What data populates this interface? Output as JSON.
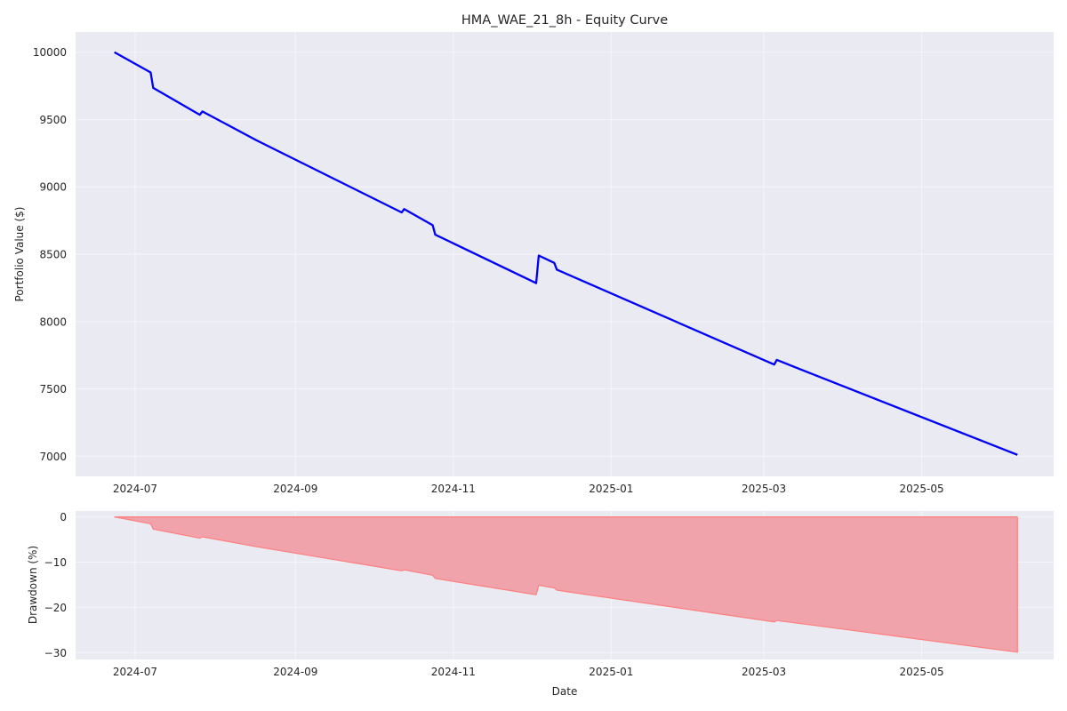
{
  "chart_data": [
    {
      "type": "line",
      "title": "HMA_WAE_21_8h - Equity Curve",
      "xlabel": "",
      "ylabel": "Portfolio Value ($)",
      "xlim": [
        "2024-06-08",
        "2025-06-21"
      ],
      "ylim": [
        6850,
        10150
      ],
      "x_ticks": [
        "2024-07",
        "2024-09",
        "2024-11",
        "2025-01",
        "2025-03",
        "2025-05"
      ],
      "y_ticks": [
        7000,
        7500,
        8000,
        8500,
        9000,
        9500,
        10000
      ],
      "grid": true,
      "color": "#0000ff",
      "series": [
        {
          "x": [
            "2024-06-23",
            "2024-07-07",
            "2024-07-08",
            "2024-07-26",
            "2024-07-27",
            "2024-08-17",
            "2024-10-12",
            "2024-10-13",
            "2024-10-24",
            "2024-10-25",
            "2024-12-03",
            "2024-12-04",
            "2024-12-10",
            "2024-12-11",
            "2025-03-05",
            "2025-03-06",
            "2025-03-21",
            "2025-06-07"
          ],
          "y": [
            10000,
            9850,
            9735,
            9535,
            9560,
            9345,
            8810,
            8835,
            8715,
            8645,
            8285,
            8490,
            8435,
            8385,
            7680,
            7715,
            7600,
            7010
          ]
        }
      ]
    },
    {
      "type": "area",
      "title": "",
      "xlabel": "Date",
      "ylabel": "Drawdown (%)",
      "xlim": [
        "2024-06-08",
        "2025-06-21"
      ],
      "ylim": [
        -31.5,
        1.3
      ],
      "x_ticks": [
        "2024-07",
        "2024-09",
        "2024-11",
        "2025-01",
        "2025-03",
        "2025-05"
      ],
      "y_ticks": [
        0,
        -10,
        -20,
        -30
      ],
      "grid": true,
      "line_color": "#ff7f7f",
      "fill_color": "#f0a3aa",
      "series": [
        {
          "x": [
            "2024-06-23",
            "2024-07-07",
            "2024-07-08",
            "2024-07-26",
            "2024-07-27",
            "2024-08-17",
            "2024-10-12",
            "2024-10-13",
            "2024-10-24",
            "2024-10-25",
            "2024-12-03",
            "2024-12-04",
            "2024-12-10",
            "2024-12-11",
            "2025-03-05",
            "2025-03-06",
            "2025-03-21",
            "2025-06-07"
          ],
          "y": [
            0,
            -1.5,
            -2.7,
            -4.7,
            -4.4,
            -6.6,
            -11.9,
            -11.7,
            -12.9,
            -13.6,
            -17.2,
            -15.1,
            -15.7,
            -16.2,
            -23.2,
            -22.9,
            -24.0,
            -29.9
          ]
        }
      ]
    }
  ]
}
